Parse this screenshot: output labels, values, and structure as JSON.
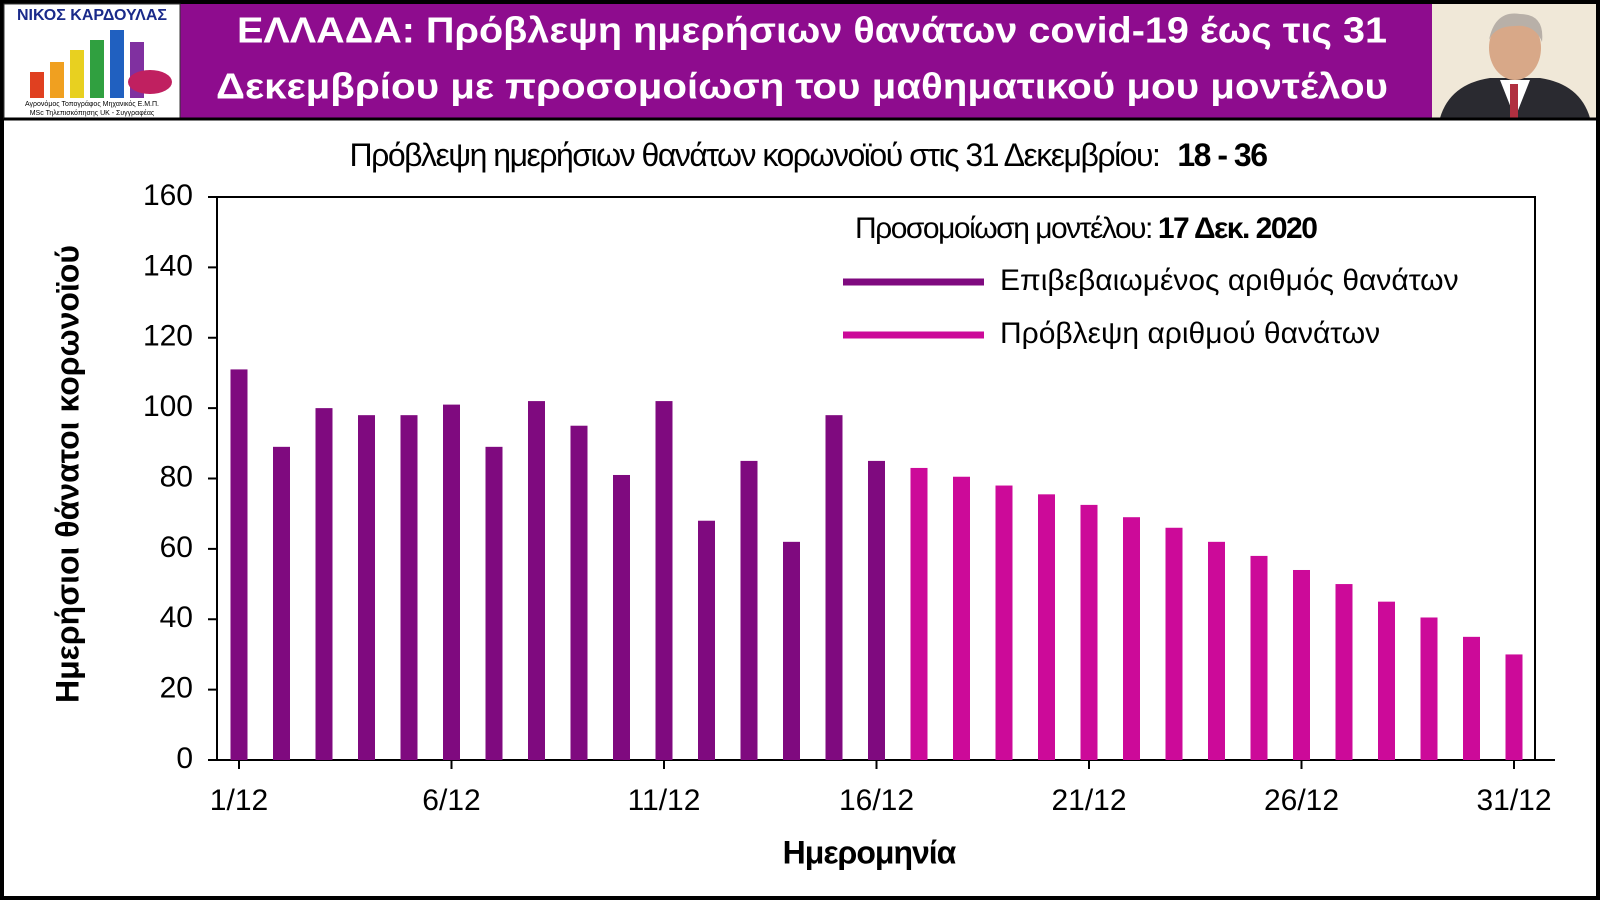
{
  "header": {
    "logo_name": "ΝΙΚΟΣ ΚΑΡΔΟΥΛΑΣ",
    "logo_caption": [
      "Αγρονόμος Τοπογράφος Μηχανικός Ε.Μ.Π.",
      "MSc Τηλεπισκόπησης UK - Συγγραφέας"
    ],
    "title": [
      "ΕΛΛΑΔΑ: Πρόβλεψη ημερήσιων θανάτων covid-19 έως τις 31",
      "Δεκεμβρίου με προσομοίωση του μαθηματικού μου μοντέλου"
    ]
  },
  "chart_data": {
    "type": "bar",
    "subtitle": "Πρόβλεψη ημερήσιων θανάτων κορωνοϊού στις 31 Δεκεμβρίου:",
    "subtitle_range": "18 - 36",
    "annotation": "Προσομοίωση μοντέλου:",
    "annotation_date": "17 Δεκ. 2020",
    "xlabel": "Ημερομηνία",
    "ylabel": "Ημερήσιοι θάνατοι κορωνοϊού",
    "categories": [
      "1/12",
      null,
      null,
      null,
      null,
      "6/12",
      null,
      null,
      null,
      null,
      "11/12",
      null,
      null,
      null,
      null,
      "16/12",
      null,
      null,
      null,
      null,
      "21/12",
      null,
      null,
      null,
      null,
      "26/12",
      null,
      null,
      null,
      null,
      "31/12"
    ],
    "series": [
      {
        "name": "Επιβεβαιωμένος αριθμός θανάτων",
        "color": "#7f0a7f",
        "values": [
          111,
          89,
          100,
          98,
          98,
          101,
          89,
          102,
          95,
          81,
          102,
          68,
          85,
          62,
          98,
          85,
          null,
          null,
          null,
          null,
          null,
          null,
          null,
          null,
          null,
          null,
          null,
          null,
          null,
          null,
          null
        ]
      },
      {
        "name": "Πρόβλεψη αριθμού θανάτων",
        "color": "#cc0a99",
        "values": [
          null,
          null,
          null,
          null,
          null,
          null,
          null,
          null,
          null,
          null,
          null,
          null,
          null,
          null,
          null,
          null,
          83,
          80.5,
          78,
          75.5,
          72.5,
          69,
          66,
          62,
          58,
          54,
          50,
          45,
          40.5,
          35,
          30
        ]
      }
    ],
    "ylim": [
      0,
      160
    ],
    "yticks": [
      0,
      20,
      40,
      60,
      80,
      100,
      120,
      140,
      160
    ],
    "grid": false
  }
}
